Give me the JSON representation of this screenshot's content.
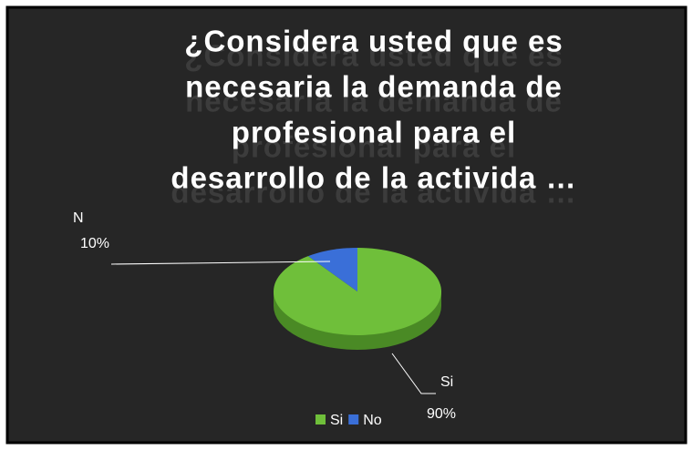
{
  "chart_data": {
    "type": "pie3d",
    "title": [
      "¿Considera usted que es",
      "necesaria la demanda de",
      "profesional para el",
      "desarrollo de la activida  …"
    ],
    "categories": [
      "Si",
      "No"
    ],
    "values": [
      90,
      10
    ],
    "value_labels": [
      "90%",
      "10%"
    ],
    "label_names": [
      "Si",
      "N"
    ],
    "colors": [
      "#6fbf3a",
      "#3a6fd8"
    ],
    "legend": "bottom"
  }
}
